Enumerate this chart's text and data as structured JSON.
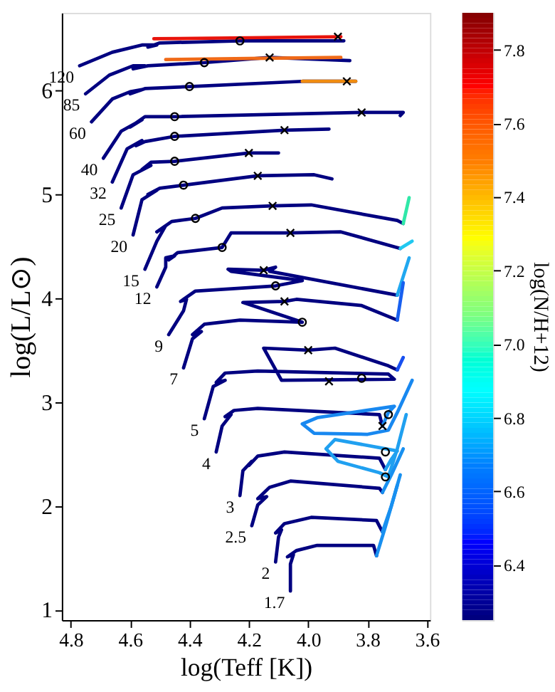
{
  "chart_data": {
    "type": "line",
    "xlabel": "log(Teff [K])",
    "ylabel": "log(L/L⊙)",
    "clabel": "log(N/H+12)",
    "line_style": "solid",
    "xlim": [
      4.83,
      3.59
    ],
    "ylim": [
      0.9,
      6.75
    ],
    "clim": [
      6.25,
      7.9
    ],
    "xticks": [
      4.8,
      4.6,
      4.4,
      4.2,
      {
        "value": 4.0,
        "label": "4.0"
      },
      3.8,
      3.6
    ],
    "yticks": [
      1,
      2,
      3,
      4,
      5,
      6
    ],
    "cticks": [
      6.4,
      6.6,
      6.8,
      {
        "value": 7.0,
        "label": "7.0"
      },
      7.2,
      7.4,
      7.6,
      7.8
    ],
    "series": [
      {
        "name": "120",
        "color": "#000080",
        "x": [
          4.77,
          4.66,
          4.56,
          4.51,
          4.54,
          4.5,
          4.23,
          3.88
        ],
        "values": [
          6.24,
          6.37,
          6.44,
          6.44,
          6.42,
          6.46,
          6.48,
          6.48
        ]
      },
      {
        "color": "#e8140c",
        "x": [
          4.52,
          4.2,
          3.89
        ],
        "values": [
          6.5,
          6.51,
          6.52
        ]
      },
      {
        "name": "85",
        "color": "#000080",
        "x": [
          4.75,
          4.67,
          4.59,
          4.55,
          4.59,
          4.54,
          4.35,
          4.13,
          3.86
        ],
        "values": [
          5.97,
          6.15,
          6.24,
          6.24,
          6.21,
          6.24,
          6.27,
          6.32,
          6.29
        ]
      },
      {
        "color": "#f06a18",
        "x": [
          4.48,
          4.2,
          3.89
        ],
        "values": [
          6.3,
          6.31,
          6.32
        ]
      },
      {
        "name": "60",
        "color": "#000080",
        "x": [
          4.73,
          4.66,
          4.6,
          4.56,
          4.6,
          4.55,
          4.4,
          4.02,
          3.84
        ],
        "values": [
          5.7,
          5.92,
          5.99,
          6.01,
          5.97,
          6.02,
          6.04,
          6.09,
          6.09
        ]
      },
      {
        "color": "#f08c10",
        "x": [
          4.02,
          3.93,
          3.84
        ],
        "values": [
          6.09,
          6.09,
          6.09
        ]
      },
      {
        "name": "40",
        "color": "#000080",
        "x": [
          4.69,
          4.63,
          4.56,
          4.6,
          4.55,
          4.45,
          3.82,
          3.68,
          3.69
        ],
        "values": [
          5.35,
          5.61,
          5.72,
          5.65,
          5.75,
          5.75,
          5.79,
          5.79,
          5.76
        ]
      },
      {
        "name": "32",
        "color": "#000080",
        "x": [
          4.66,
          4.61,
          4.56,
          4.58,
          4.55,
          4.45,
          4.08,
          3.93
        ],
        "values": [
          5.12,
          5.44,
          5.52,
          5.47,
          5.51,
          5.56,
          5.62,
          5.63
        ]
      },
      {
        "name": "25",
        "color": "#000080",
        "x": [
          4.63,
          4.59,
          4.53,
          4.56,
          4.53,
          4.45,
          4.2,
          4.1
        ],
        "values": [
          4.87,
          5.19,
          5.28,
          5.24,
          5.31,
          5.32,
          5.4,
          5.4
        ]
      },
      {
        "name": "20",
        "color": "#000080",
        "x": [
          4.59,
          4.56,
          4.51,
          4.54,
          4.5,
          4.42,
          4.17,
          3.98,
          3.92
        ],
        "values": [
          4.61,
          4.95,
          5.04,
          5.0,
          5.06,
          5.09,
          5.18,
          5.19,
          5.15
        ]
      },
      {
        "name": "15",
        "color": "#000080",
        "x": [
          4.55,
          4.51,
          4.48,
          4.51,
          4.46,
          4.38,
          4.29,
          4.12,
          3.99,
          3.7,
          3.68
        ],
        "values": [
          4.28,
          4.55,
          4.7,
          4.64,
          4.74,
          4.77,
          4.87,
          4.89,
          4.9,
          4.75,
          4.72
        ]
      },
      {
        "color": "#30e8a8",
        "x": [
          3.68,
          3.66
        ],
        "values": [
          4.72,
          4.97
        ]
      },
      {
        "name": "12",
        "color": "#000080",
        "x": [
          4.51,
          4.48,
          4.48,
          4.45,
          4.47,
          4.44,
          4.29,
          4.26,
          4.06,
          3.89,
          3.69
        ],
        "values": [
          4.11,
          4.3,
          4.39,
          4.41,
          4.37,
          4.44,
          4.49,
          4.63,
          4.63,
          4.64,
          4.48
        ]
      },
      {
        "color": "#20c8f0",
        "x": [
          3.69,
          3.65
        ],
        "values": [
          4.48,
          4.55
        ]
      },
      {
        "name": "9",
        "color": "#000080",
        "x": [
          4.47,
          4.42,
          4.41,
          4.43,
          4.38,
          4.11,
          4.02,
          4.26,
          4.27,
          4.15,
          4.11,
          4.13,
          3.7
        ],
        "values": [
          3.65,
          3.88,
          3.99,
          3.97,
          4.07,
          4.12,
          4.17,
          4.26,
          4.28,
          4.27,
          4.3,
          4.26,
          4.03
        ]
      },
      {
        "color": "#20a8f0",
        "x": [
          3.7,
          3.66
        ],
        "values": [
          4.03,
          4.39
        ]
      },
      {
        "name": "7",
        "color": "#000080",
        "x": [
          4.42,
          4.39,
          4.36,
          4.39,
          4.35,
          4.23,
          4.02,
          4.22,
          4.08,
          4.04,
          3.82,
          3.7
        ],
        "values": [
          3.33,
          3.61,
          3.68,
          3.65,
          3.75,
          3.79,
          3.77,
          3.96,
          3.97,
          3.99,
          3.93,
          3.79
        ]
      },
      {
        "color": "#1860f0",
        "x": [
          3.7,
          3.68
        ],
        "values": [
          3.79,
          4.15
        ]
      },
      {
        "name": "5",
        "color": "#000080",
        "x": [
          4.35,
          4.32,
          4.28,
          4.31,
          4.28,
          4.17,
          3.73,
          3.71,
          4.09,
          4.15,
          4.0,
          3.91,
          3.73,
          3.7
        ],
        "values": [
          2.84,
          3.15,
          3.21,
          3.19,
          3.28,
          3.3,
          3.27,
          3.22,
          3.21,
          3.52,
          3.5,
          3.52,
          3.35,
          3.31
        ]
      },
      {
        "color": "#1850f0",
        "x": [
          3.7,
          3.68
        ],
        "values": [
          3.31,
          3.43
        ]
      },
      {
        "name": "4",
        "color": "#000080",
        "x": [
          4.31,
          4.29,
          4.26,
          4.28,
          4.25,
          4.17,
          3.76,
          3.75
        ],
        "values": [
          2.52,
          2.77,
          2.88,
          2.86,
          2.92,
          2.94,
          2.88,
          2.77
        ]
      },
      {
        "color": "#1888f0",
        "x": [
          3.75,
          3.73,
          3.71,
          3.97,
          4.02,
          3.98,
          3.8,
          3.73,
          3.7,
          3.65
        ],
        "values": [
          2.77,
          2.9,
          2.96,
          2.85,
          2.79,
          2.7,
          2.69,
          2.73,
          2.9,
          3.21
        ]
      },
      {
        "name": "3",
        "color": "#000080",
        "x": [
          4.23,
          4.22,
          4.19,
          4.2,
          4.17,
          4.08,
          3.76,
          3.74
        ],
        "values": [
          2.1,
          2.34,
          2.43,
          2.39,
          2.48,
          2.52,
          2.46,
          2.35
        ]
      },
      {
        "color": "#20a0f0",
        "x": [
          3.74,
          3.72,
          3.7,
          3.91,
          3.94,
          3.9,
          3.76,
          3.73,
          3.7,
          3.67
        ],
        "values": [
          2.35,
          2.45,
          2.53,
          2.64,
          2.55,
          2.43,
          2.32,
          2.28,
          2.55,
          2.88
        ]
      },
      {
        "name": "2.5",
        "color": "#000080",
        "x": [
          4.19,
          4.17,
          4.14,
          4.17,
          4.13,
          4.06,
          3.76,
          3.75
        ],
        "values": [
          1.81,
          2.01,
          2.09,
          2.07,
          2.18,
          2.24,
          2.17,
          2.13
        ]
      },
      {
        "color": "#1890f0",
        "x": [
          3.75,
          3.72,
          3.68
        ],
        "values": [
          2.13,
          2.3,
          2.55
        ]
      },
      {
        "name": "2",
        "color": "#000080",
        "x": [
          4.11,
          4.1,
          4.09,
          4.11,
          4.08,
          3.99,
          3.77,
          3.75
        ],
        "values": [
          1.46,
          1.7,
          1.77,
          1.74,
          1.83,
          1.89,
          1.86,
          1.75
        ]
      },
      {
        "color": "#1890f0",
        "x": [
          3.75,
          3.72,
          3.7
        ],
        "values": [
          1.75,
          2.0,
          2.2
        ]
      },
      {
        "name": "1.7",
        "color": "#000080",
        "x": [
          4.06,
          4.06,
          4.05,
          4.07,
          4.04,
          3.97,
          3.78,
          3.77
        ],
        "values": [
          1.18,
          1.44,
          1.53,
          1.51,
          1.57,
          1.62,
          1.62,
          1.52
        ]
      },
      {
        "color": "#1890f0",
        "x": [
          3.77,
          3.74,
          3.71,
          3.69
        ],
        "values": [
          1.52,
          1.8,
          2.1,
          2.3
        ]
      },
      {
        "type": "scatter",
        "marker": "circle",
        "color": "#000000",
        "x": [
          4.23,
          4.35,
          4.4,
          4.45,
          4.45,
          4.45,
          4.42,
          4.38,
          4.29,
          4.11,
          4.02,
          3.82,
          3.73,
          3.74,
          3.74
        ],
        "values": [
          6.48,
          6.27,
          6.04,
          5.75,
          5.56,
          5.32,
          5.09,
          4.77,
          4.49,
          4.12,
          3.77,
          3.23,
          2.88,
          2.52,
          2.28
        ]
      },
      {
        "type": "scatter",
        "marker": "cross",
        "color": "#000000",
        "x": [
          3.9,
          4.13,
          3.87,
          3.82,
          4.08,
          4.2,
          4.17,
          4.12,
          4.06,
          4.15,
          4.08,
          3.93,
          4.0,
          3.75
        ],
        "values": [
          6.52,
          6.32,
          6.09,
          5.79,
          5.62,
          5.4,
          5.18,
          4.89,
          4.63,
          4.27,
          3.97,
          3.2,
          3.5,
          2.77
        ]
      }
    ]
  }
}
